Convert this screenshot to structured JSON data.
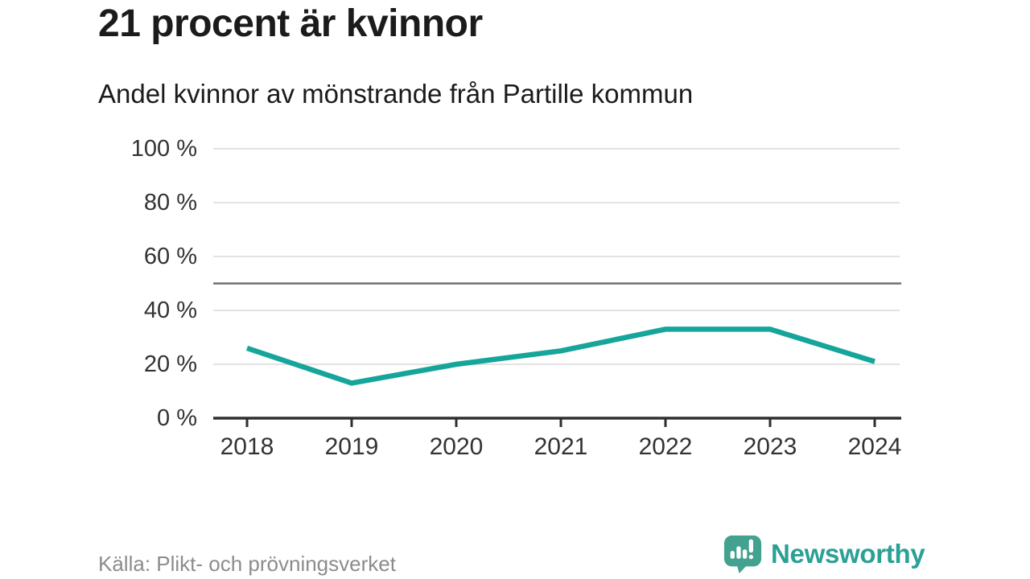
{
  "header": {
    "title": "21 procent är kvinnor",
    "subtitle": "Andel kvinnor av mönstrande från Partille kommun"
  },
  "chart_data": {
    "type": "line",
    "title": "21 procent är kvinnor",
    "subtitle": "Andel kvinnor av mönstrande från Partille kommun",
    "categories": [
      "2018",
      "2019",
      "2020",
      "2021",
      "2022",
      "2023",
      "2024"
    ],
    "series": [
      {
        "name": "Andel kvinnor av mönstrande från Partille kommun",
        "values": [
          26,
          13,
          20,
          25,
          33,
          33,
          21
        ]
      }
    ],
    "unit": "%",
    "xlabel": "",
    "ylabel": "",
    "ylim": [
      0,
      100
    ],
    "y_ticks": [
      0,
      20,
      40,
      60,
      80,
      100
    ],
    "y_tick_labels": [
      "0 %",
      "20 %",
      "40 %",
      "60 %",
      "80 %",
      "100 %"
    ],
    "reference_line": 50,
    "grid": true,
    "legend": false
  },
  "footer": {
    "source": "Källa: Plikt- och prövningsverket",
    "logo_text": "Newsworthy"
  },
  "colors": {
    "line": "#16a59b",
    "grid": "#e3e3e3",
    "reference_line": "#6e6e6e",
    "axis": "#2e2e2e",
    "title_text": "#1b1b1b",
    "tick_text": "#333333",
    "source_text": "#8c8c8c",
    "logo_icon": "#43a18f",
    "logo_text": "#2aa096"
  }
}
